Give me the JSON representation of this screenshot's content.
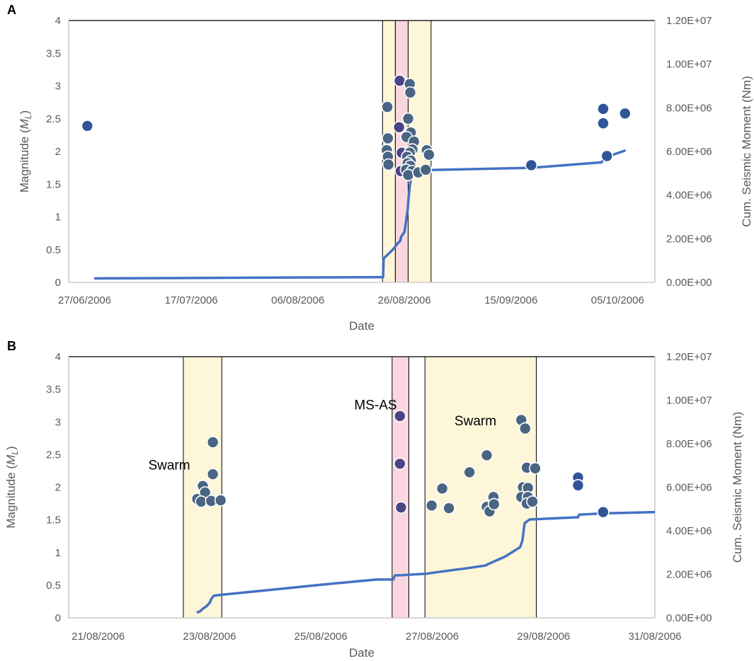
{
  "colors": {
    "swarm_fill": "#fdf6d8",
    "msas_fill": "#fad7df",
    "line": "#4472c4",
    "dot_blue": "#2f5597",
    "dot_gray": "#4a6583",
    "dot_purple": "#4a4585",
    "axis": "#bfbfbf",
    "text": "#595959"
  },
  "chart_data": [
    {
      "type": "scatter",
      "panel_label": "A",
      "xlabel": "Date",
      "ylabel_main": "Magnitude (",
      "ylabel_var": "M",
      "ylabel_sub": "L",
      "ylabel_end": ")",
      "y2label": "Cum. Seismic Moment (Nm)",
      "xlim": [
        -3,
        107
      ],
      "ylim": [
        0,
        4
      ],
      "y2lim": [
        0,
        12000000
      ],
      "x_ticks": [
        {
          "x": 0,
          "label": "27/06/2006"
        },
        {
          "x": 20,
          "label": "17/07/2006"
        },
        {
          "x": 40,
          "label": "06/08/2006"
        },
        {
          "x": 60,
          "label": "26/08/2006"
        },
        {
          "x": 80,
          "label": "15/09/2006"
        },
        {
          "x": 100,
          "label": "05/10/2006"
        }
      ],
      "y_ticks": [
        {
          "v": 0,
          "label": "0"
        },
        {
          "v": 0.5,
          "label": "0.5"
        },
        {
          "v": 1,
          "label": "1"
        },
        {
          "v": 1.5,
          "label": "1.5"
        },
        {
          "v": 2,
          "label": "2"
        },
        {
          "v": 2.5,
          "label": "2.5"
        },
        {
          "v": 3,
          "label": "3"
        },
        {
          "v": 3.5,
          "label": "3.5"
        },
        {
          "v": 4,
          "label": "4"
        }
      ],
      "y2_ticks": [
        {
          "v": 0,
          "label": "0.00E+00"
        },
        {
          "v": 2000000,
          "label": "2.00E+06"
        },
        {
          "v": 4000000,
          "label": "4.00E+06"
        },
        {
          "v": 6000000,
          "label": "6.00E+06"
        },
        {
          "v": 8000000,
          "label": "8.00E+06"
        },
        {
          "v": 10000000,
          "label": "1.00E+07"
        },
        {
          "v": 12000000,
          "label": "1.20E+07"
        }
      ],
      "bands": [
        {
          "x0": 55.9,
          "x1": 58.3,
          "kind": "swarm"
        },
        {
          "x0": 58.3,
          "x1": 60.7,
          "kind": "msas"
        },
        {
          "x0": 60.7,
          "x1": 65.0,
          "kind": "swarm"
        }
      ],
      "points": [
        {
          "x": 0.5,
          "y": 2.39,
          "c": "blue"
        },
        {
          "x": 56.8,
          "y": 2.68,
          "c": "gray"
        },
        {
          "x": 56.9,
          "y": 2.2,
          "c": "gray"
        },
        {
          "x": 56.7,
          "y": 2.02,
          "c": "gray"
        },
        {
          "x": 56.9,
          "y": 1.92,
          "c": "gray"
        },
        {
          "x": 57.0,
          "y": 1.8,
          "c": "gray"
        },
        {
          "x": 59.1,
          "y": 3.08,
          "c": "purple"
        },
        {
          "x": 59.0,
          "y": 2.37,
          "c": "purple"
        },
        {
          "x": 59.5,
          "y": 1.98,
          "c": "purple"
        },
        {
          "x": 59.3,
          "y": 1.7,
          "c": "purple"
        },
        {
          "x": 61.0,
          "y": 3.03,
          "c": "gray"
        },
        {
          "x": 61.1,
          "y": 2.9,
          "c": "gray"
        },
        {
          "x": 60.7,
          "y": 2.5,
          "c": "gray"
        },
        {
          "x": 61.2,
          "y": 2.29,
          "c": "gray"
        },
        {
          "x": 60.4,
          "y": 2.22,
          "c": "gray"
        },
        {
          "x": 61.8,
          "y": 2.15,
          "c": "gray"
        },
        {
          "x": 61.5,
          "y": 2.03,
          "c": "gray"
        },
        {
          "x": 61.0,
          "y": 1.98,
          "c": "gray"
        },
        {
          "x": 60.5,
          "y": 1.92,
          "c": "gray"
        },
        {
          "x": 61.2,
          "y": 1.86,
          "c": "gray"
        },
        {
          "x": 60.6,
          "y": 1.82,
          "c": "gray"
        },
        {
          "x": 61.1,
          "y": 1.78,
          "c": "gray"
        },
        {
          "x": 60.3,
          "y": 1.72,
          "c": "gray"
        },
        {
          "x": 61.4,
          "y": 1.7,
          "c": "gray"
        },
        {
          "x": 60.7,
          "y": 1.64,
          "c": "gray"
        },
        {
          "x": 62.6,
          "y": 1.68,
          "c": "gray"
        },
        {
          "x": 64.0,
          "y": 1.72,
          "c": "gray"
        },
        {
          "x": 64.2,
          "y": 2.02,
          "c": "gray"
        },
        {
          "x": 64.6,
          "y": 1.95,
          "c": "gray"
        },
        {
          "x": 83.8,
          "y": 1.79,
          "c": "blue"
        },
        {
          "x": 97.3,
          "y": 2.65,
          "c": "blue"
        },
        {
          "x": 97.3,
          "y": 2.43,
          "c": "blue"
        },
        {
          "x": 98.0,
          "y": 1.93,
          "c": "blue"
        },
        {
          "x": 101.4,
          "y": 2.58,
          "c": "blue"
        }
      ],
      "cum_line": [
        [
          1.8,
          180000
        ],
        [
          55.6,
          240000
        ],
        [
          56.0,
          240000
        ],
        [
          56.1,
          1100000
        ],
        [
          57.0,
          1300000
        ],
        [
          58.0,
          1550000
        ],
        [
          58.6,
          1750000
        ],
        [
          59.2,
          1900000
        ],
        [
          59.4,
          2100000
        ],
        [
          60.0,
          2300000
        ],
        [
          60.3,
          2800000
        ],
        [
          60.6,
          3300000
        ],
        [
          60.8,
          3900000
        ],
        [
          61.0,
          4400000
        ],
        [
          61.2,
          4700000
        ],
        [
          61.6,
          4850000
        ],
        [
          62.5,
          5000000
        ],
        [
          63.5,
          5080000
        ],
        [
          64.7,
          5150000
        ],
        [
          83.8,
          5250000
        ],
        [
          97.0,
          5500000
        ],
        [
          97.6,
          5720000
        ],
        [
          101.5,
          6050000
        ]
      ]
    },
    {
      "type": "scatter",
      "panel_label": "B",
      "xlabel": "Date",
      "ylabel_main": "Magnitude (",
      "ylabel_var": "M",
      "ylabel_sub": "L",
      "ylabel_end": ")",
      "y2label": "Cum. Seismic Moment (Nm)",
      "xlim": [
        -0.53,
        10.0
      ],
      "ylim": [
        0,
        4
      ],
      "y2lim": [
        0,
        12000000
      ],
      "x_ticks": [
        {
          "x": 0,
          "label": "21/08/2006"
        },
        {
          "x": 2,
          "label": "23/08/2006"
        },
        {
          "x": 4,
          "label": "25/08/2006"
        },
        {
          "x": 6,
          "label": "27/08/2006"
        },
        {
          "x": 8,
          "label": "29/08/2006"
        },
        {
          "x": 10,
          "label": "31/08/2006"
        }
      ],
      "y_ticks": [
        {
          "v": 0,
          "label": "0"
        },
        {
          "v": 0.5,
          "label": "0.5"
        },
        {
          "v": 1,
          "label": "1"
        },
        {
          "v": 1.5,
          "label": "1.5"
        },
        {
          "v": 2,
          "label": "2"
        },
        {
          "v": 2.5,
          "label": "2.5"
        },
        {
          "v": 3,
          "label": "3"
        },
        {
          "v": 3.5,
          "label": "3.5"
        },
        {
          "v": 4,
          "label": "4"
        }
      ],
      "y2_ticks": [
        {
          "v": 0,
          "label": "0.00E+00"
        },
        {
          "v": 2000000,
          "label": "2.00E+06"
        },
        {
          "v": 4000000,
          "label": "4.00E+06"
        },
        {
          "v": 6000000,
          "label": "6.00E+06"
        },
        {
          "v": 8000000,
          "label": "8.00E+06"
        },
        {
          "v": 10000000,
          "label": "1.00E+07"
        },
        {
          "v": 12000000,
          "label": "1.20E+07"
        }
      ],
      "bands": [
        {
          "x0": 1.53,
          "x1": 2.22,
          "kind": "swarm"
        },
        {
          "x0": 5.28,
          "x1": 5.58,
          "kind": "msas"
        },
        {
          "x0": 5.87,
          "x1": 7.87,
          "kind": "swarm"
        }
      ],
      "annotations": [
        {
          "text": "Swarm",
          "x": 0.9,
          "y": 2.27
        },
        {
          "text": "MS-AS",
          "x": 4.6,
          "y": 3.19
        },
        {
          "text": "Swarm",
          "x": 6.4,
          "y": 2.95
        }
      ],
      "points": [
        {
          "x": 1.78,
          "y": 1.82,
          "c": "gray"
        },
        {
          "x": 1.88,
          "y": 2.02,
          "c": "gray"
        },
        {
          "x": 1.92,
          "y": 1.92,
          "c": "gray"
        },
        {
          "x": 1.85,
          "y": 1.78,
          "c": "gray"
        },
        {
          "x": 2.03,
          "y": 1.79,
          "c": "gray"
        },
        {
          "x": 2.06,
          "y": 2.2,
          "c": "gray"
        },
        {
          "x": 2.06,
          "y": 2.69,
          "c": "gray"
        },
        {
          "x": 2.2,
          "y": 1.8,
          "c": "gray"
        },
        {
          "x": 5.42,
          "y": 3.09,
          "c": "purple"
        },
        {
          "x": 5.42,
          "y": 2.36,
          "c": "purple"
        },
        {
          "x": 5.44,
          "y": 1.69,
          "c": "purple"
        },
        {
          "x": 5.99,
          "y": 1.72,
          "c": "gray"
        },
        {
          "x": 6.18,
          "y": 1.98,
          "c": "gray"
        },
        {
          "x": 6.3,
          "y": 1.68,
          "c": "gray"
        },
        {
          "x": 6.67,
          "y": 2.23,
          "c": "gray"
        },
        {
          "x": 6.98,
          "y": 2.49,
          "c": "gray"
        },
        {
          "x": 6.98,
          "y": 1.7,
          "c": "gray"
        },
        {
          "x": 7.03,
          "y": 1.63,
          "c": "gray"
        },
        {
          "x": 7.1,
          "y": 1.85,
          "c": "gray"
        },
        {
          "x": 7.11,
          "y": 1.74,
          "c": "gray"
        },
        {
          "x": 7.6,
          "y": 3.03,
          "c": "gray"
        },
        {
          "x": 7.67,
          "y": 2.9,
          "c": "gray"
        },
        {
          "x": 7.63,
          "y": 2.0,
          "c": "gray"
        },
        {
          "x": 7.6,
          "y": 1.85,
          "c": "gray"
        },
        {
          "x": 7.7,
          "y": 2.3,
          "c": "gray"
        },
        {
          "x": 7.72,
          "y": 1.99,
          "c": "gray"
        },
        {
          "x": 7.72,
          "y": 1.85,
          "c": "gray"
        },
        {
          "x": 7.7,
          "y": 1.75,
          "c": "gray"
        },
        {
          "x": 7.8,
          "y": 1.78,
          "c": "gray"
        },
        {
          "x": 7.85,
          "y": 2.29,
          "c": "gray"
        },
        {
          "x": 8.62,
          "y": 2.15,
          "c": "blue"
        },
        {
          "x": 8.62,
          "y": 2.03,
          "c": "blue"
        },
        {
          "x": 9.07,
          "y": 1.62,
          "c": "blue"
        }
      ],
      "cum_line": [
        [
          1.77,
          240000
        ],
        [
          1.83,
          300000
        ],
        [
          1.88,
          420000
        ],
        [
          1.94,
          520000
        ],
        [
          2.0,
          680000
        ],
        [
          2.04,
          900000
        ],
        [
          2.08,
          1020000
        ],
        [
          2.15,
          1040000
        ],
        [
          2.25,
          1070000
        ],
        [
          3.0,
          1260000
        ],
        [
          4.0,
          1520000
        ],
        [
          5.0,
          1760000
        ],
        [
          5.3,
          1760000
        ],
        [
          5.33,
          1950000
        ],
        [
          5.45,
          1960000
        ],
        [
          5.9,
          2030000
        ],
        [
          6.15,
          2120000
        ],
        [
          6.6,
          2270000
        ],
        [
          6.95,
          2400000
        ],
        [
          7.05,
          2520000
        ],
        [
          7.3,
          2800000
        ],
        [
          7.58,
          3250000
        ],
        [
          7.62,
          3550000
        ],
        [
          7.66,
          4350000
        ],
        [
          7.75,
          4520000
        ],
        [
          8.62,
          4620000
        ],
        [
          8.64,
          4740000
        ],
        [
          9.07,
          4800000
        ],
        [
          10.0,
          4860000
        ]
      ]
    }
  ]
}
